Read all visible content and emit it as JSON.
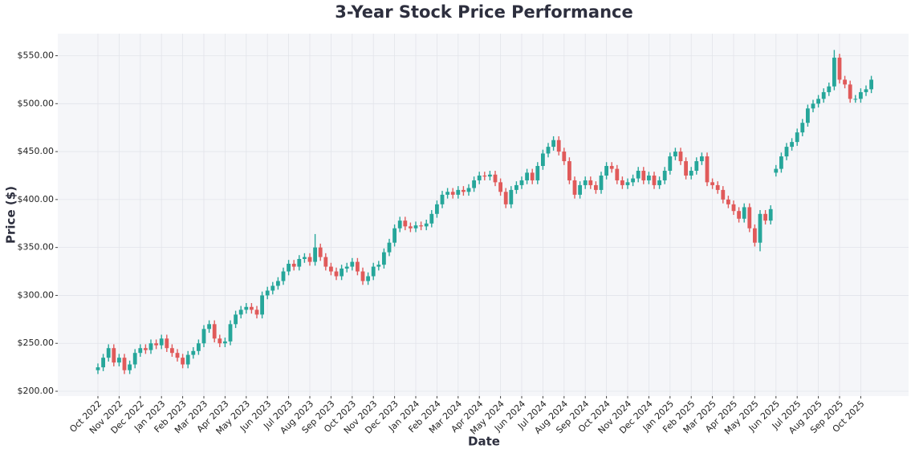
{
  "chart_data": {
    "type": "candlestick",
    "title": "3-Year Stock Price Performance",
    "x_label": "Date",
    "y_label": "Price ($)",
    "up_color": "#26a69a",
    "down_color": "#e05a5a",
    "grid": true,
    "categories": [
      "Oct 2022",
      null,
      null,
      null,
      "Nov 2022",
      null,
      null,
      null,
      "Dec 2022",
      null,
      null,
      null,
      "Jan 2023",
      null,
      null,
      null,
      "Feb 2023",
      null,
      null,
      null,
      "Mar 2023",
      null,
      null,
      null,
      "Apr 2023",
      null,
      null,
      null,
      "May 2023",
      null,
      null,
      null,
      "Jun 2023",
      null,
      null,
      null,
      "Jul 2023",
      null,
      null,
      null,
      "Aug 2023",
      null,
      null,
      null,
      "Sep 2023",
      null,
      null,
      null,
      "Oct 2023",
      null,
      null,
      null,
      "Nov 2023",
      null,
      null,
      null,
      "Dec 2023",
      null,
      null,
      null,
      "Jan 2024",
      null,
      null,
      null,
      "Feb 2024",
      null,
      null,
      null,
      "Mar 2024",
      null,
      null,
      null,
      "Apr 2024",
      null,
      null,
      null,
      "May 2024",
      null,
      null,
      null,
      "Jun 2024",
      null,
      null,
      null,
      "Jul 2024",
      null,
      null,
      null,
      "Aug 2024",
      null,
      null,
      null,
      "Sep 2024",
      null,
      null,
      null,
      "Oct 2024",
      null,
      null,
      null,
      "Nov 2024",
      null,
      null,
      null,
      "Dec 2024",
      null,
      null,
      null,
      "Jan 2025",
      null,
      null,
      null,
      "Feb 2025",
      null,
      null,
      null,
      "Mar 2025",
      null,
      null,
      null,
      "Apr 2025",
      null,
      null,
      null,
      "May 2025",
      null,
      null,
      null,
      "Jun 2025",
      null,
      null,
      null,
      "Jul 2025",
      null,
      null,
      null,
      "Aug 2025",
      null,
      null,
      null,
      "Sep 2025",
      null,
      null,
      null,
      "Oct 2025",
      null,
      null
    ],
    "open": [
      222,
      225,
      235,
      245,
      230,
      235,
      222,
      228,
      240,
      245,
      243,
      250,
      248,
      255,
      245,
      240,
      235,
      228,
      238,
      242,
      250,
      265,
      270,
      255,
      250,
      252,
      270,
      280,
      285,
      288,
      285,
      280,
      300,
      305,
      310,
      315,
      325,
      333,
      330,
      338,
      340,
      335,
      350,
      340,
      330,
      325,
      320,
      328,
      330,
      335,
      325,
      315,
      320,
      330,
      332,
      345,
      355,
      370,
      378,
      372,
      370,
      373,
      372,
      375,
      385,
      395,
      405,
      408,
      405,
      410,
      408,
      412,
      420,
      425,
      424,
      426,
      418,
      408,
      395,
      410,
      415,
      420,
      428,
      420,
      435,
      448,
      455,
      462,
      450,
      440,
      420,
      405,
      415,
      420,
      415,
      410,
      425,
      435,
      432,
      420,
      415,
      418,
      422,
      430,
      420,
      425,
      415,
      420,
      430,
      445,
      450,
      440,
      425,
      430,
      440,
      445,
      418,
      415,
      410,
      400,
      395,
      388,
      380,
      392,
      370,
      355,
      385,
      378,
      428,
      432,
      445,
      455,
      460,
      470,
      480,
      495,
      500,
      505,
      512,
      518,
      548,
      525,
      520,
      505,
      505,
      512,
      515
    ],
    "high": [
      229,
      239,
      249,
      249,
      239,
      239,
      232,
      244,
      249,
      249,
      254,
      254,
      259,
      259,
      249,
      244,
      239,
      242,
      246,
      254,
      269,
      274,
      274,
      259,
      256,
      274,
      284,
      289,
      292,
      292,
      289,
      304,
      309,
      314,
      319,
      329,
      337,
      337,
      342,
      344,
      344,
      364,
      354,
      344,
      334,
      329,
      332,
      334,
      339,
      339,
      329,
      324,
      334,
      336,
      349,
      359,
      374,
      382,
      382,
      376,
      377,
      377,
      379,
      389,
      399,
      409,
      412,
      412,
      414,
      414,
      416,
      424,
      429,
      429,
      430,
      430,
      422,
      412,
      414,
      419,
      424,
      432,
      432,
      439,
      452,
      459,
      466,
      466,
      454,
      444,
      424,
      419,
      424,
      424,
      419,
      429,
      439,
      439,
      436,
      424,
      422,
      426,
      434,
      434,
      429,
      429,
      424,
      434,
      449,
      454,
      454,
      444,
      434,
      444,
      449,
      449,
      422,
      419,
      414,
      404,
      399,
      392,
      396,
      396,
      374,
      389,
      389,
      394,
      436,
      449,
      459,
      464,
      474,
      484,
      499,
      504,
      509,
      516,
      522,
      556,
      552,
      529,
      524,
      509,
      516,
      519,
      529
    ],
    "low": [
      218,
      221,
      231,
      226,
      226,
      218,
      218,
      224,
      236,
      239,
      239,
      244,
      244,
      241,
      236,
      231,
      224,
      224,
      234,
      238,
      246,
      261,
      251,
      246,
      246,
      248,
      266,
      276,
      281,
      281,
      276,
      276,
      296,
      301,
      306,
      311,
      321,
      326,
      326,
      334,
      331,
      331,
      336,
      326,
      321,
      316,
      316,
      324,
      326,
      321,
      311,
      311,
      316,
      326,
      328,
      341,
      351,
      366,
      368,
      366,
      366,
      368,
      368,
      371,
      381,
      391,
      401,
      401,
      401,
      404,
      404,
      408,
      416,
      420,
      420,
      414,
      404,
      391,
      391,
      406,
      411,
      416,
      416,
      416,
      431,
      444,
      451,
      446,
      436,
      416,
      401,
      401,
      411,
      411,
      406,
      406,
      421,
      428,
      416,
      411,
      411,
      414,
      418,
      416,
      416,
      411,
      411,
      416,
      426,
      441,
      436,
      421,
      421,
      426,
      436,
      414,
      411,
      406,
      396,
      391,
      384,
      376,
      376,
      366,
      351,
      346,
      374,
      374,
      424,
      428,
      441,
      451,
      456,
      466,
      476,
      491,
      496,
      501,
      508,
      514,
      521,
      516,
      501,
      501,
      501,
      508,
      511
    ],
    "close": [
      225,
      235,
      245,
      230,
      235,
      222,
      228,
      240,
      245,
      243,
      250,
      248,
      255,
      245,
      240,
      235,
      228,
      238,
      242,
      250,
      265,
      270,
      255,
      250,
      252,
      270,
      280,
      285,
      288,
      285,
      280,
      300,
      305,
      310,
      315,
      325,
      333,
      330,
      338,
      340,
      335,
      350,
      340,
      330,
      325,
      320,
      328,
      330,
      335,
      325,
      315,
      320,
      330,
      332,
      345,
      355,
      370,
      378,
      372,
      370,
      373,
      372,
      375,
      385,
      395,
      405,
      408,
      405,
      410,
      408,
      412,
      420,
      425,
      424,
      426,
      418,
      408,
      395,
      410,
      415,
      420,
      428,
      420,
      435,
      448,
      455,
      462,
      450,
      440,
      420,
      405,
      415,
      420,
      415,
      410,
      425,
      435,
      432,
      420,
      415,
      418,
      422,
      430,
      420,
      425,
      415,
      420,
      430,
      445,
      450,
      440,
      425,
      430,
      440,
      445,
      418,
      415,
      410,
      400,
      395,
      388,
      380,
      392,
      370,
      355,
      385,
      378,
      390,
      432,
      445,
      455,
      460,
      470,
      480,
      495,
      500,
      505,
      512,
      518,
      548,
      525,
      520,
      505,
      505,
      512,
      515,
      525
    ],
    "ylim": [
      195,
      573
    ],
    "yticks": [
      {
        "value": 200,
        "label": "$200.00"
      },
      {
        "value": 250,
        "label": "$250.00"
      },
      {
        "value": 300,
        "label": "$300.00"
      },
      {
        "value": 350,
        "label": "$350.00"
      },
      {
        "value": 400,
        "label": "$400.00"
      },
      {
        "value": 450,
        "label": "$450.00"
      },
      {
        "value": 500,
        "label": "$500.00"
      },
      {
        "value": 550,
        "label": "$550.00"
      }
    ]
  }
}
